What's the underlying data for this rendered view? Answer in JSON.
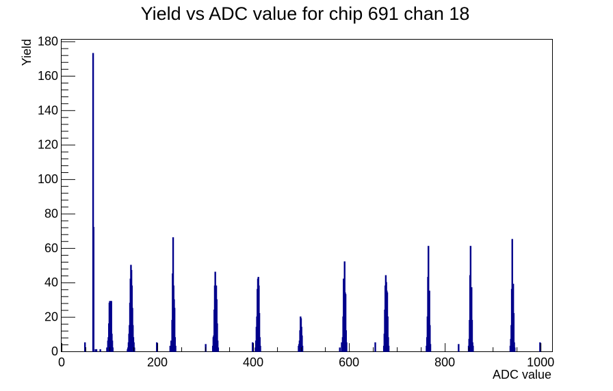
{
  "chart_data": {
    "type": "bar",
    "title": "Yield vs ADC value for chip 691 chan 18",
    "xlabel": "ADC value",
    "ylabel": "Yield",
    "xlim": [
      0,
      1024
    ],
    "ylim": [
      0,
      181
    ],
    "x_ticks": [
      0,
      200,
      400,
      600,
      800,
      1000
    ],
    "y_ticks": [
      0,
      20,
      40,
      60,
      80,
      100,
      120,
      140,
      160,
      180
    ],
    "x_ticks_minor_step": 50,
    "y_ticks_minor_step": 4,
    "grid": false,
    "legend": "none",
    "line_color": "#00008b",
    "series": [
      {
        "bins": [
          {
            "x": 48,
            "y": 5
          },
          {
            "x": 65,
            "y": 173
          },
          {
            "x": 66,
            "y": 72
          },
          {
            "x": 70,
            "y": 1
          },
          {
            "x": 72,
            "y": 1
          },
          {
            "x": 80,
            "y": 1
          },
          {
            "x": 94,
            "y": 2
          },
          {
            "x": 96,
            "y": 6
          },
          {
            "x": 97,
            "y": 8
          },
          {
            "x": 98,
            "y": 16
          },
          {
            "x": 99,
            "y": 28
          },
          {
            "x": 100,
            "y": 29
          },
          {
            "x": 101,
            "y": 20
          },
          {
            "x": 102,
            "y": 29
          },
          {
            "x": 103,
            "y": 29
          },
          {
            "x": 104,
            "y": 10
          },
          {
            "x": 105,
            "y": 6
          },
          {
            "x": 106,
            "y": 2
          },
          {
            "x": 137,
            "y": 1
          },
          {
            "x": 138,
            "y": 2
          },
          {
            "x": 139,
            "y": 5
          },
          {
            "x": 140,
            "y": 10
          },
          {
            "x": 141,
            "y": 15
          },
          {
            "x": 142,
            "y": 28
          },
          {
            "x": 143,
            "y": 42
          },
          {
            "x": 144,
            "y": 50
          },
          {
            "x": 145,
            "y": 47
          },
          {
            "x": 146,
            "y": 38
          },
          {
            "x": 147,
            "y": 25
          },
          {
            "x": 148,
            "y": 15
          },
          {
            "x": 149,
            "y": 8
          },
          {
            "x": 150,
            "y": 5
          },
          {
            "x": 151,
            "y": 2
          },
          {
            "x": 198,
            "y": 5
          },
          {
            "x": 226,
            "y": 3
          },
          {
            "x": 228,
            "y": 6
          },
          {
            "x": 230,
            "y": 18
          },
          {
            "x": 231,
            "y": 45
          },
          {
            "x": 232,
            "y": 66
          },
          {
            "x": 233,
            "y": 38
          },
          {
            "x": 234,
            "y": 30
          },
          {
            "x": 235,
            "y": 25
          },
          {
            "x": 236,
            "y": 8
          },
          {
            "x": 237,
            "y": 3
          },
          {
            "x": 300,
            "y": 4
          },
          {
            "x": 315,
            "y": 3
          },
          {
            "x": 316,
            "y": 8
          },
          {
            "x": 317,
            "y": 9
          },
          {
            "x": 318,
            "y": 24
          },
          {
            "x": 319,
            "y": 38
          },
          {
            "x": 320,
            "y": 46
          },
          {
            "x": 321,
            "y": 34
          },
          {
            "x": 322,
            "y": 38
          },
          {
            "x": 323,
            "y": 30
          },
          {
            "x": 324,
            "y": 16
          },
          {
            "x": 325,
            "y": 6
          },
          {
            "x": 326,
            "y": 2
          },
          {
            "x": 398,
            "y": 5
          },
          {
            "x": 404,
            "y": 2
          },
          {
            "x": 405,
            "y": 6
          },
          {
            "x": 406,
            "y": 14
          },
          {
            "x": 407,
            "y": 20
          },
          {
            "x": 408,
            "y": 36
          },
          {
            "x": 409,
            "y": 42
          },
          {
            "x": 410,
            "y": 43
          },
          {
            "x": 411,
            "y": 38
          },
          {
            "x": 412,
            "y": 22
          },
          {
            "x": 413,
            "y": 8
          },
          {
            "x": 414,
            "y": 3
          },
          {
            "x": 494,
            "y": 3
          },
          {
            "x": 495,
            "y": 4
          },
          {
            "x": 496,
            "y": 6
          },
          {
            "x": 497,
            "y": 12
          },
          {
            "x": 498,
            "y": 20
          },
          {
            "x": 499,
            "y": 19
          },
          {
            "x": 500,
            "y": 14
          },
          {
            "x": 501,
            "y": 9
          },
          {
            "x": 502,
            "y": 3
          },
          {
            "x": 580,
            "y": 2
          },
          {
            "x": 584,
            "y": 5
          },
          {
            "x": 586,
            "y": 8
          },
          {
            "x": 587,
            "y": 20
          },
          {
            "x": 588,
            "y": 42
          },
          {
            "x": 589,
            "y": 40
          },
          {
            "x": 590,
            "y": 52
          },
          {
            "x": 591,
            "y": 34
          },
          {
            "x": 592,
            "y": 33
          },
          {
            "x": 593,
            "y": 12
          },
          {
            "x": 594,
            "y": 5
          },
          {
            "x": 654,
            "y": 5
          },
          {
            "x": 672,
            "y": 3
          },
          {
            "x": 673,
            "y": 10
          },
          {
            "x": 674,
            "y": 24
          },
          {
            "x": 675,
            "y": 38
          },
          {
            "x": 676,
            "y": 44
          },
          {
            "x": 677,
            "y": 40
          },
          {
            "x": 678,
            "y": 35
          },
          {
            "x": 679,
            "y": 34
          },
          {
            "x": 680,
            "y": 20
          },
          {
            "x": 681,
            "y": 8
          },
          {
            "x": 682,
            "y": 3
          },
          {
            "x": 761,
            "y": 3
          },
          {
            "x": 762,
            "y": 8
          },
          {
            "x": 763,
            "y": 20
          },
          {
            "x": 764,
            "y": 43
          },
          {
            "x": 765,
            "y": 61
          },
          {
            "x": 766,
            "y": 30
          },
          {
            "x": 767,
            "y": 35
          },
          {
            "x": 768,
            "y": 15
          },
          {
            "x": 769,
            "y": 4
          },
          {
            "x": 828,
            "y": 4
          },
          {
            "x": 849,
            "y": 3
          },
          {
            "x": 850,
            "y": 7
          },
          {
            "x": 851,
            "y": 18
          },
          {
            "x": 852,
            "y": 44
          },
          {
            "x": 853,
            "y": 61
          },
          {
            "x": 854,
            "y": 30
          },
          {
            "x": 855,
            "y": 37
          },
          {
            "x": 856,
            "y": 18
          },
          {
            "x": 857,
            "y": 5
          },
          {
            "x": 858,
            "y": 3
          },
          {
            "x": 936,
            "y": 3
          },
          {
            "x": 937,
            "y": 7
          },
          {
            "x": 938,
            "y": 15
          },
          {
            "x": 939,
            "y": 36
          },
          {
            "x": 940,
            "y": 65
          },
          {
            "x": 941,
            "y": 38
          },
          {
            "x": 942,
            "y": 39
          },
          {
            "x": 943,
            "y": 22
          },
          {
            "x": 944,
            "y": 5
          },
          {
            "x": 945,
            "y": 2
          },
          {
            "x": 998,
            "y": 5
          }
        ]
      }
    ]
  }
}
